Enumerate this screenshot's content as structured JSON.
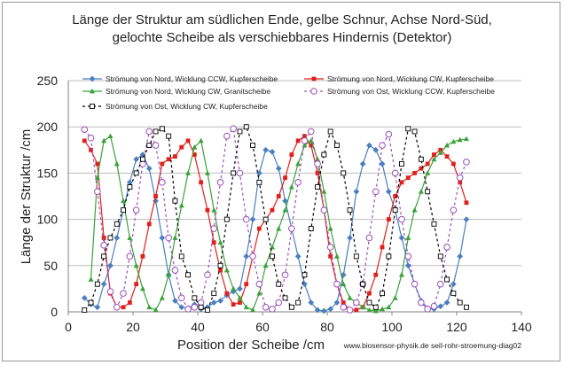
{
  "chart_data": {
    "type": "line",
    "title_lines": [
      "Länge der Struktur am südlichen Ende, gelbe Schnur, Achse Nord-Süd,",
      "gelochte Scheibe als verschiebbares Hindernis (Detektor)"
    ],
    "xlabel": "Position der Scheibe /cm",
    "ylabel": "Länge der Struktur /cm",
    "xlim": [
      0,
      140
    ],
    "ylim": [
      0,
      250
    ],
    "xticks": [
      0,
      20,
      40,
      60,
      80,
      100,
      120,
      140
    ],
    "yticks": [
      0,
      50,
      100,
      150,
      200,
      250
    ],
    "grid": "horizontal",
    "legend_position": "top",
    "footer": "www.biosensor-physik.de seil-rohr-stroemung-diag02",
    "series": [
      {
        "name": "Strömung von Nord, Wicklung CCW, Kupferscheibe",
        "color": "#4a7fc1",
        "marker": "diamond",
        "dashed": false,
        "x": [
          5,
          7,
          9,
          11,
          13,
          15,
          17,
          19,
          21,
          23,
          25,
          27,
          29,
          31,
          33,
          35,
          37,
          39,
          41,
          43,
          45,
          47,
          49,
          51,
          53,
          55,
          57,
          59,
          61,
          63,
          65,
          67,
          69,
          71,
          73,
          75,
          77,
          79,
          81,
          83,
          85,
          87,
          89,
          91,
          93,
          95,
          97,
          99,
          101,
          103,
          105,
          107,
          109,
          111,
          113,
          115,
          117,
          119,
          121,
          123
        ],
        "y": [
          15,
          8,
          5,
          30,
          50,
          80,
          110,
          140,
          165,
          170,
          155,
          120,
          80,
          40,
          12,
          5,
          4,
          8,
          3,
          5,
          10,
          12,
          18,
          22,
          25,
          60,
          100,
          150,
          175,
          173,
          155,
          120,
          90,
          60,
          30,
          10,
          2,
          1,
          3,
          10,
          40,
          80,
          130,
          160,
          180,
          175,
          160,
          130,
          110,
          80,
          50,
          30,
          12,
          4,
          3,
          6,
          10,
          30,
          60,
          100
        ]
      },
      {
        "name": "Strömung von Nord, Wicklung CW, Kupferscheibe",
        "color": "#e0201b",
        "marker": "square",
        "dashed": false,
        "x": [
          5,
          7,
          9,
          11,
          13,
          15,
          17,
          19,
          21,
          23,
          25,
          27,
          29,
          31,
          33,
          35,
          37,
          39,
          41,
          43,
          45,
          47,
          49,
          51,
          53,
          55,
          57,
          59,
          61,
          63,
          65,
          67,
          69,
          71,
          73,
          75,
          77,
          79,
          81,
          83,
          85,
          87,
          89,
          91,
          93,
          95,
          97,
          99,
          101,
          103,
          105,
          107,
          109,
          111,
          113,
          115,
          117,
          119,
          121,
          123
        ],
        "y": [
          185,
          175,
          160,
          80,
          20,
          5,
          5,
          10,
          30,
          60,
          95,
          125,
          160,
          165,
          168,
          178,
          185,
          170,
          140,
          110,
          75,
          45,
          20,
          8,
          10,
          30,
          60,
          90,
          100,
          110,
          125,
          145,
          170,
          185,
          190,
          180,
          150,
          110,
          60,
          30,
          10,
          2,
          2,
          5,
          20,
          40,
          70,
          100,
          125,
          140,
          145,
          150,
          155,
          160,
          170,
          175,
          168,
          160,
          140,
          118
        ]
      },
      {
        "name": "Strömung von Nord, Wicklung CW, Granitscheibe",
        "color": "#3aa23a",
        "marker": "triangle",
        "dashed": false,
        "x": [
          7,
          9,
          11,
          13,
          15,
          17,
          19,
          21,
          23,
          25,
          27,
          29,
          31,
          33,
          35,
          37,
          39,
          41,
          43,
          45,
          47,
          49,
          51,
          53,
          55,
          57,
          59,
          61,
          63,
          65,
          67,
          69,
          71,
          73,
          75,
          77,
          79,
          81,
          83,
          85,
          87,
          89,
          91,
          93,
          95,
          97,
          99,
          101,
          103,
          105,
          107,
          109,
          111,
          113,
          115,
          117,
          119,
          121,
          123
        ],
        "y": [
          35,
          145,
          185,
          190,
          160,
          120,
          80,
          50,
          25,
          5,
          2,
          15,
          40,
          80,
          115,
          150,
          178,
          185,
          150,
          110,
          75,
          45,
          25,
          15,
          5,
          2,
          20,
          50,
          70,
          90,
          110,
          135,
          160,
          180,
          185,
          165,
          130,
          90,
          60,
          30,
          15,
          10,
          5,
          2,
          1,
          3,
          5,
          15,
          40,
          80,
          110,
          130,
          150,
          165,
          172,
          180,
          184,
          186,
          187
        ]
      },
      {
        "name": "Strömung von Ost, Wicklung CCW, Kupferscheibe",
        "color": "#9a4db8",
        "marker": "circle",
        "dashed": true,
        "x": [
          5,
          7,
          9,
          11,
          13,
          15,
          17,
          19,
          21,
          23,
          25,
          27,
          29,
          31,
          33,
          35,
          37,
          39,
          41,
          43,
          45,
          47,
          49,
          51,
          53,
          55,
          57,
          59,
          61,
          63,
          65,
          67,
          69,
          71,
          73,
          75,
          77,
          79,
          81,
          83,
          85,
          87,
          89,
          91,
          93,
          95,
          97,
          99,
          101,
          103,
          105,
          107,
          109,
          111,
          113,
          115,
          117,
          119,
          121,
          123
        ],
        "y": [
          197,
          188,
          130,
          72,
          22,
          5,
          20,
          60,
          110,
          160,
          195,
          180,
          140,
          80,
          45,
          15,
          3,
          5,
          10,
          40,
          90,
          140,
          190,
          198,
          150,
          100,
          60,
          30,
          5,
          3,
          10,
          40,
          90,
          140,
          185,
          195,
          160,
          110,
          70,
          30,
          5,
          2,
          10,
          30,
          80,
          130,
          180,
          192,
          150,
          100,
          60,
          30,
          10,
          3,
          6,
          30,
          70,
          110,
          145,
          162
        ]
      },
      {
        "name": "Strömung von Ost, Wicklung CW, Kupferscheibe",
        "color": "#000000",
        "marker": "square-open",
        "dashed": true,
        "x": [
          5,
          7,
          9,
          11,
          13,
          15,
          17,
          19,
          21,
          23,
          25,
          27,
          29,
          31,
          33,
          35,
          37,
          39,
          41,
          43,
          45,
          47,
          49,
          51,
          53,
          55,
          57,
          59,
          61,
          63,
          65,
          67,
          69,
          71,
          73,
          75,
          77,
          79,
          81,
          83,
          85,
          87,
          89,
          91,
          93,
          95,
          97,
          99,
          101,
          103,
          105,
          107,
          109,
          111,
          113,
          115,
          117,
          119,
          121,
          123
        ],
        "y": [
          2,
          10,
          30,
          60,
          80,
          95,
          110,
          135,
          150,
          165,
          180,
          195,
          198,
          190,
          120,
          60,
          40,
          15,
          5,
          2,
          20,
          50,
          100,
          150,
          195,
          200,
          180,
          140,
          100,
          60,
          30,
          15,
          5,
          10,
          40,
          90,
          135,
          170,
          195,
          180,
          150,
          110,
          60,
          30,
          10,
          5,
          20,
          60,
          110,
          160,
          198,
          195,
          165,
          130,
          95,
          60,
          35,
          20,
          10,
          5
        ]
      }
    ]
  }
}
